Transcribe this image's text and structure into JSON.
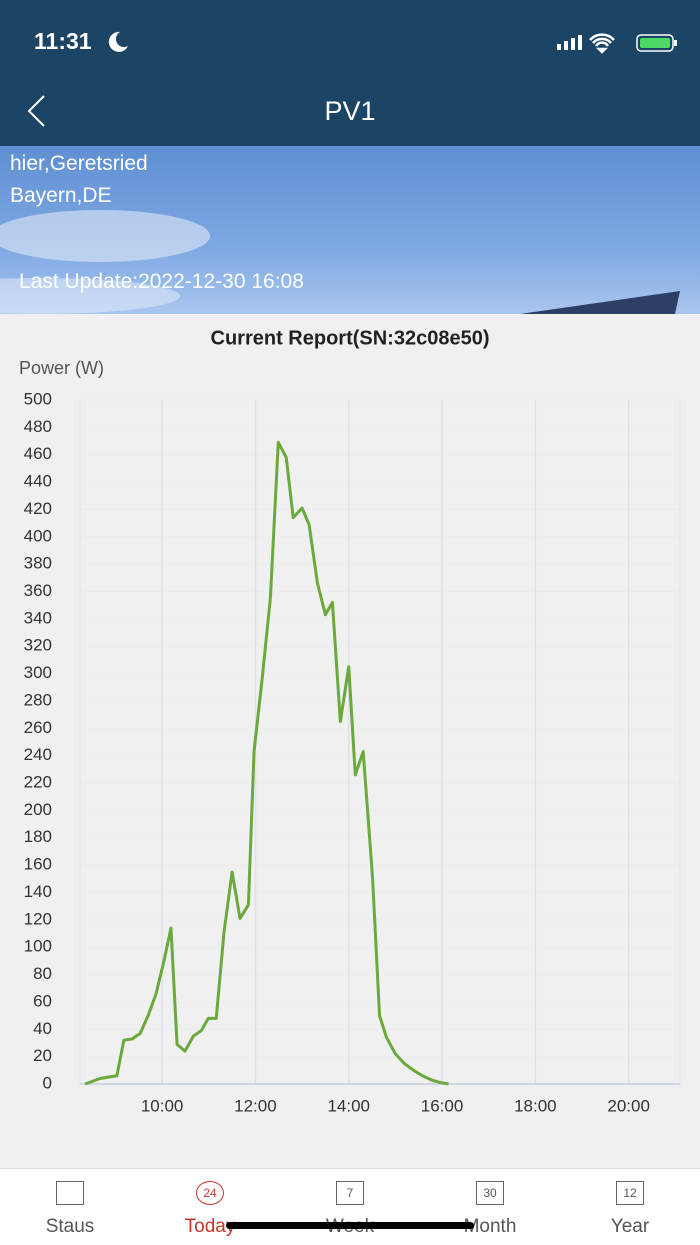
{
  "status_bar": {
    "time": "11:31"
  },
  "header": {
    "title": "PV1"
  },
  "location": {
    "line1": "hier,Geretsried",
    "line2": "Bayern,DE",
    "last_update": "Last Update:2022-12-30 16:08"
  },
  "chart_data": {
    "type": "line",
    "title": "Current Report(SN:32c08e50)",
    "y_label": "Power (W)",
    "x": [
      8.35,
      8.67,
      9.03,
      9.18,
      9.36,
      9.53,
      9.7,
      9.87,
      10.04,
      10.19,
      10.32,
      10.49,
      10.67,
      10.84,
      10.99,
      11.16,
      11.33,
      11.5,
      11.67,
      11.85,
      11.97,
      12.15,
      12.32,
      12.49,
      12.66,
      12.81,
      13.0,
      13.15,
      13.33,
      13.5,
      13.65,
      13.82,
      14.0,
      14.14,
      14.31,
      14.51,
      14.66,
      14.81,
      15.0,
      15.19,
      15.39,
      15.58,
      15.77,
      15.97,
      16.14
    ],
    "series": [
      {
        "name": "Power",
        "color": "#6aa93c",
        "values": [
          0,
          4,
          6,
          32,
          33,
          37,
          50,
          66,
          90,
          114,
          29,
          24,
          35,
          39,
          48,
          48,
          112,
          155,
          121,
          131,
          243,
          298,
          355,
          469,
          458,
          414,
          421,
          409,
          366,
          343,
          352,
          265,
          305,
          226,
          243,
          151,
          50,
          34,
          22,
          15,
          10,
          6,
          3,
          1,
          0
        ]
      }
    ],
    "xlim": [
      8.24,
      21.1
    ],
    "xticks": [
      {
        "value": 10,
        "label": "10:00"
      },
      {
        "value": 12,
        "label": "12:00"
      },
      {
        "value": 14,
        "label": "14:00"
      },
      {
        "value": 16,
        "label": "16:00"
      },
      {
        "value": 18,
        "label": "18:00"
      },
      {
        "value": 20,
        "label": "20:00"
      }
    ],
    "ylim": [
      0,
      500
    ],
    "yticks": [
      0,
      20,
      40,
      60,
      80,
      100,
      120,
      140,
      160,
      180,
      200,
      220,
      240,
      260,
      280,
      300,
      320,
      340,
      360,
      380,
      400,
      420,
      440,
      460,
      480,
      500
    ],
    "grid": true
  },
  "tabs": [
    {
      "label": "Staus",
      "icon": ""
    },
    {
      "label": "Today",
      "icon": "24"
    },
    {
      "label": "Week",
      "icon": "7"
    },
    {
      "label": "Month",
      "icon": "30"
    },
    {
      "label": "Year",
      "icon": "12"
    }
  ]
}
